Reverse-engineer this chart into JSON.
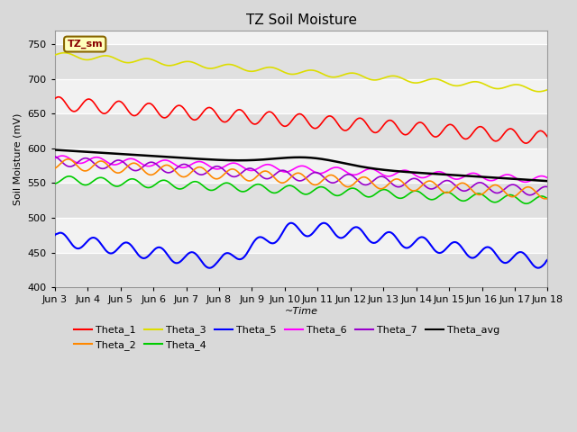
{
  "title": "TZ Soil Moisture",
  "xlabel": "~Time",
  "ylabel": "Soil Moisture (mV)",
  "ylim": [
    400,
    770
  ],
  "xlim": [
    0,
    360
  ],
  "xtick_labels": [
    "Jun 3",
    "Jun 4",
    "Jun 5",
    "Jun 6",
    "Jun 7",
    "Jun 8",
    "Jun 9",
    "Jun 10",
    "Jun 11",
    "Jun 12",
    "Jun 13",
    "Jun 14",
    "Jun 15",
    "Jun 16",
    "Jun 17",
    "Jun 18"
  ],
  "xtick_positions": [
    0,
    24,
    48,
    72,
    96,
    120,
    144,
    168,
    192,
    216,
    240,
    264,
    288,
    312,
    336,
    360
  ],
  "series_colors": {
    "Theta_1": "#ff0000",
    "Theta_2": "#ff8800",
    "Theta_3": "#dddd00",
    "Theta_4": "#00cc00",
    "Theta_5": "#0000ff",
    "Theta_6": "#ff00ff",
    "Theta_7": "#9900cc",
    "Theta_avg": "#000000"
  },
  "legend_label": "TZ_sm",
  "background_color": "#d9d9d9",
  "plot_bg_light": "#f2f2f2",
  "plot_bg_dark": "#e0e0e0",
  "n_points": 361,
  "title_fontsize": 11,
  "axis_fontsize": 8,
  "tick_fontsize": 8
}
